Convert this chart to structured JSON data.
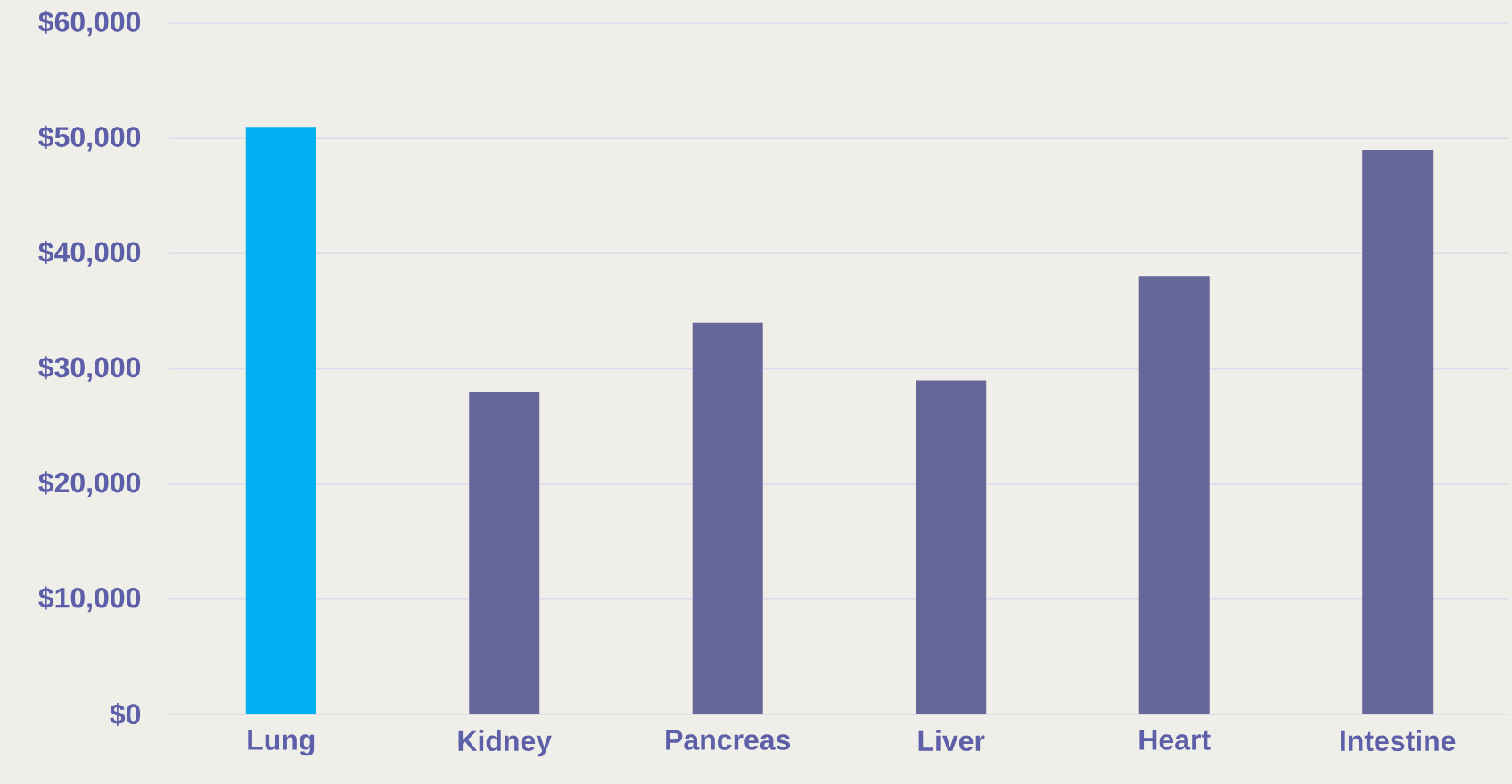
{
  "chart_data": {
    "type": "bar",
    "categories": [
      "Lung",
      "Kidney",
      "Pancreas",
      "Liver",
      "Heart",
      "Intestine"
    ],
    "values": [
      51000,
      28000,
      34000,
      29000,
      38000,
      49000
    ],
    "colors": [
      "#00b0f0",
      "#666699",
      "#666699",
      "#666699",
      "#666699",
      "#666699"
    ],
    "ylim": [
      0,
      60000
    ],
    "yticks": [
      {
        "value": 0,
        "label": "$0"
      },
      {
        "value": 10000,
        "label": "$10,000"
      },
      {
        "value": 20000,
        "label": "$20,000"
      },
      {
        "value": 30000,
        "label": "$30,000"
      },
      {
        "value": 40000,
        "label": "$40,000"
      },
      {
        "value": 50000,
        "label": "$50,000"
      },
      {
        "value": 60000,
        "label": "$60,000"
      }
    ],
    "grid": "y"
  }
}
